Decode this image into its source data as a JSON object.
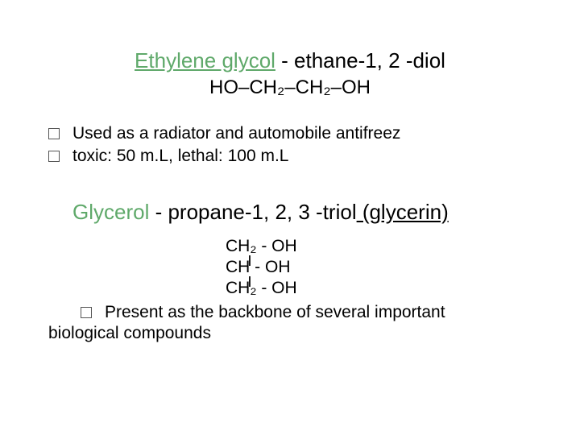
{
  "title1": {
    "highlight": "Ethylene glycol",
    "rest": " - ethane-1, 2 -diol"
  },
  "formula1": "HO–CH₂–CH₂–OH",
  "bullets": [
    "Used as a radiator and automobile antifreez",
    "toxic: 50 m.L, lethal: 100 m.L"
  ],
  "title2": {
    "highlight": "Glycerol",
    "rest_a": " - propane-1, 2, 3 -triol",
    "underline": " (glycerin)"
  },
  "structure": {
    "l1": "CH₂ - OH",
    "l2": "CH  - OH",
    "l3": "CH₂ - OH"
  },
  "bottom": {
    "line1": "Present as the backbone of several important",
    "line2": "biological compounds"
  },
  "colors": {
    "highlight": "#5fa96a",
    "text": "#000000",
    "background": "#ffffff"
  }
}
